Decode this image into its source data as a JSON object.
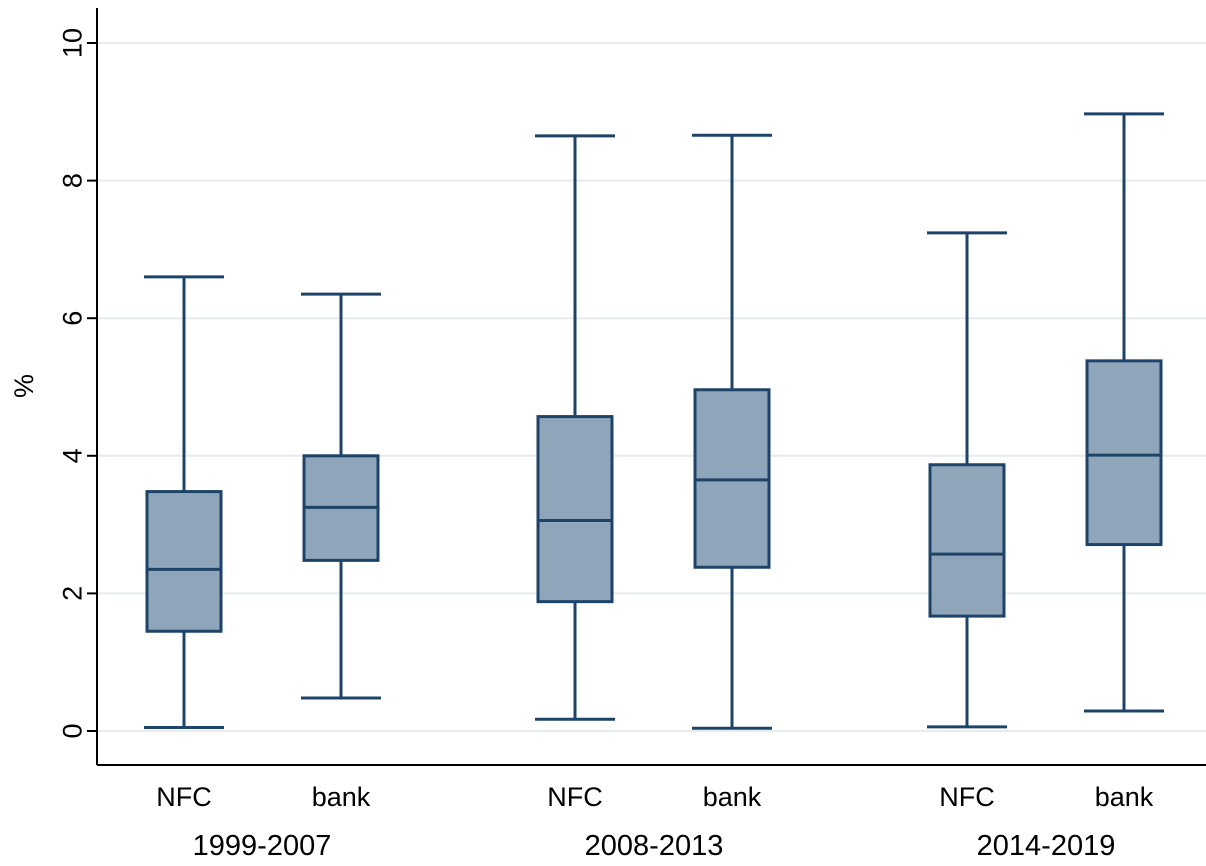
{
  "chart_data": {
    "type": "box",
    "ylabel": "%",
    "ylim": [
      0,
      10.2
    ],
    "yticks": [
      0,
      2,
      4,
      6,
      8,
      10
    ],
    "grid": true,
    "colors": {
      "box_fill": "#8fa5b9",
      "box_stroke": "#1d4468",
      "grid": "#e6ecee"
    },
    "groups": [
      {
        "label": "1999-2007",
        "boxes": [
          {
            "category": "NFC",
            "min": 0.05,
            "q1": 1.45,
            "median": 2.35,
            "q3": 3.48,
            "max": 6.6
          },
          {
            "category": "bank",
            "min": 0.48,
            "q1": 2.48,
            "median": 3.25,
            "q3": 4.0,
            "max": 6.35
          }
        ]
      },
      {
        "label": "2008-2013",
        "boxes": [
          {
            "category": "NFC",
            "min": 0.17,
            "q1": 1.88,
            "median": 3.06,
            "q3": 4.57,
            "max": 8.65
          },
          {
            "category": "bank",
            "min": 0.04,
            "q1": 2.38,
            "median": 3.65,
            "q3": 4.96,
            "max": 8.66
          }
        ]
      },
      {
        "label": "2014-2019",
        "boxes": [
          {
            "category": "NFC",
            "min": 0.06,
            "q1": 1.67,
            "median": 2.57,
            "q3": 3.87,
            "max": 7.24
          },
          {
            "category": "bank",
            "min": 0.29,
            "q1": 2.71,
            "median": 4.01,
            "q3": 5.38,
            "max": 8.97
          }
        ]
      }
    ]
  }
}
